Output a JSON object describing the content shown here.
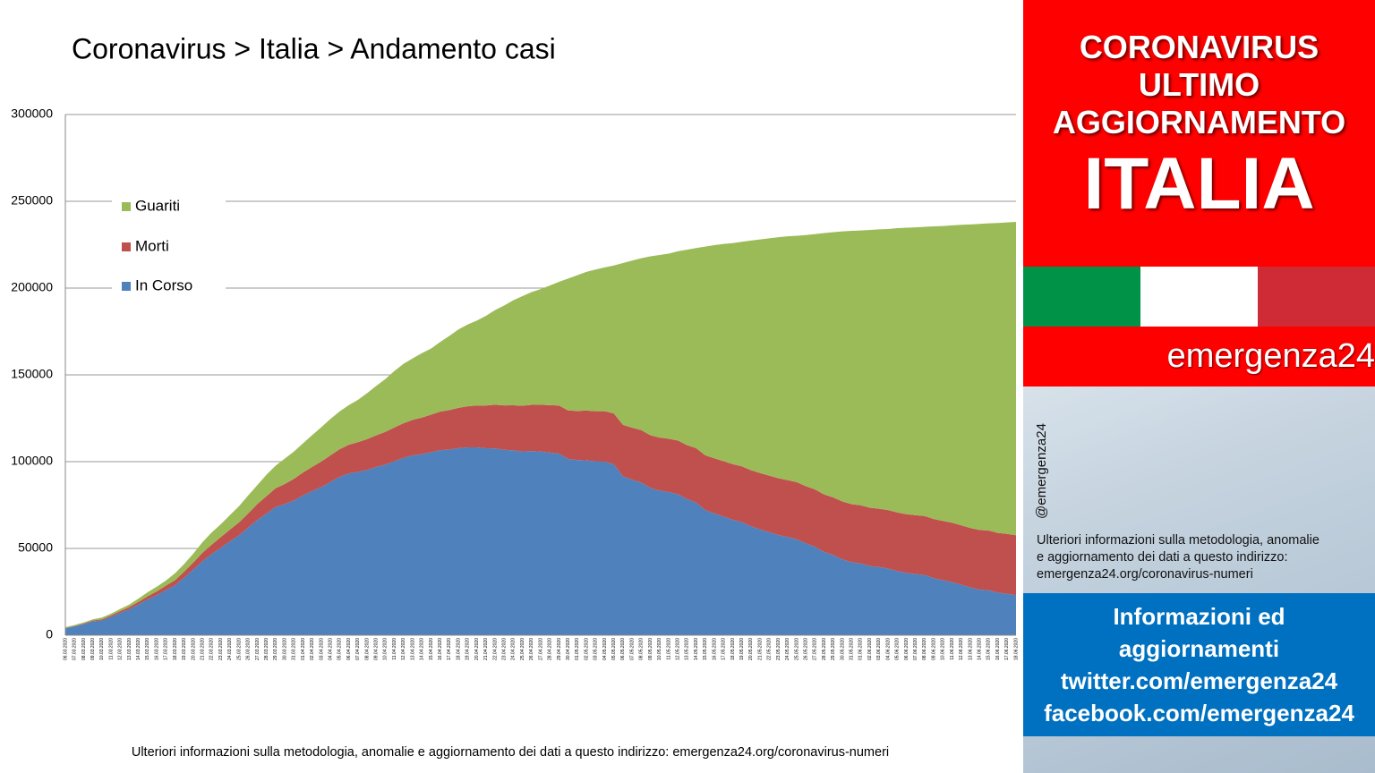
{
  "chart_data": {
    "type": "area",
    "stacked": true,
    "title": "Coronavirus > Italia > Andamento casi",
    "note": "Ulteriori informazioni sulla metodologia, anomalie e aggiornamento dei dati a questo indirizzo: emergenza24.org/coronavirus-numeri",
    "ylim": [
      0,
      300000
    ],
    "yticks": [
      0,
      50000,
      100000,
      150000,
      200000,
      250000,
      300000
    ],
    "grid": true,
    "legend": "upper left",
    "categories": [
      "06.03.2020",
      "07.03.2020",
      "08.03.2020",
      "09.03.2020",
      "10.03.2020",
      "11.03.2020",
      "12.03.2020",
      "13.03.2020",
      "14.03.2020",
      "15.03.2020",
      "16.03.2020",
      "17.03.2020",
      "18.03.2020",
      "19.03.2020",
      "20.03.2020",
      "21.03.2020",
      "22.03.2020",
      "23.03.2020",
      "24.03.2020",
      "25.03.2020",
      "26.03.2020",
      "27.03.2020",
      "28.03.2020",
      "29.03.2020",
      "30.03.2020",
      "31.03.2020",
      "01.04.2020",
      "02.04.2020",
      "03.04.2020",
      "04.04.2020",
      "05.04.2020",
      "06.04.2020",
      "07.04.2020",
      "08.04.2020",
      "09.04.2020",
      "10.04.2020",
      "11.04.2020",
      "12.04.2020",
      "13.04.2020",
      "14.04.2020",
      "15.04.2020",
      "16.04.2020",
      "17.04.2020",
      "18.04.2020",
      "19.04.2020",
      "20.04.2020",
      "21.04.2020",
      "22.04.2020",
      "23.04.2020",
      "24.04.2020",
      "25.04.2020",
      "26.04.2020",
      "27.04.2020",
      "28.04.2020",
      "29.04.2020",
      "30.04.2020",
      "01.05.2020",
      "02.05.2020",
      "03.05.2020",
      "04.05.2020",
      "05.05.2020",
      "06.05.2020",
      "07.05.2020",
      "08.05.2020",
      "09.05.2020",
      "10.05.2020",
      "11.05.2020",
      "12.05.2020",
      "13.05.2020",
      "14.05.2020",
      "15.05.2020",
      "16.05.2020",
      "17.05.2020",
      "18.05.2020",
      "19.05.2020",
      "20.05.2020",
      "21.05.2020",
      "22.05.2020",
      "23.05.2020",
      "24.05.2020",
      "25.05.2020",
      "26.05.2020",
      "27.05.2020",
      "28.05.2020",
      "29.05.2020",
      "30.05.2020",
      "31.05.2020",
      "01.06.2020",
      "02.06.2020",
      "03.06.2020",
      "04.06.2020",
      "05.06.2020",
      "06.06.2020",
      "07.06.2020",
      "08.06.2020",
      "09.06.2020",
      "10.06.2020",
      "11.06.2020",
      "12.06.2020",
      "13.06.2020",
      "14.06.2020",
      "15.06.2020",
      "16.06.2020",
      "17.06.2020",
      "18.06.2020"
    ],
    "series": [
      {
        "name": "In Corso",
        "color": "#4f81bd",
        "values": [
          3916,
          5061,
          6387,
          7985,
          8514,
          10590,
          12839,
          14955,
          17750,
          20603,
          23073,
          26062,
          28710,
          33190,
          37860,
          42681,
          46638,
          50418,
          54030,
          57521,
          62013,
          66414,
          70065,
          73880,
          75528,
          77635,
          80572,
          83049,
          85388,
          88274,
          91246,
          93187,
          94067,
          95262,
          96877,
          98273,
          100269,
          102253,
          103616,
          104291,
          105418,
          106607,
          106962,
          107771,
          108257,
          108237,
          107709,
          107699,
          106848,
          106527,
          105847,
          106103,
          105813,
          105205,
          104657,
          101551,
          100943,
          100704,
          100179,
          99980,
          98467,
          91528,
          89624,
          87961,
          84842,
          83324,
          82488,
          81266,
          78457,
          76440,
          72070,
          70187,
          68351,
          66553,
          65129,
          62752,
          60960,
          59322,
          57752,
          56594,
          55300,
          52942,
          50966,
          47986,
          46175,
          43691,
          42075,
          41367,
          39893,
          39297,
          38429,
          36976,
          35877,
          35262,
          34730,
          32872,
          31710,
          30637,
          29129,
          27485,
          26274,
          25909,
          24569,
          23925,
          23101
        ]
      },
      {
        "name": "Morti",
        "color": "#c0504d",
        "values": [
          197,
          233,
          366,
          463,
          631,
          827,
          1016,
          1266,
          1441,
          1809,
          2158,
          2503,
          2978,
          3405,
          4032,
          4825,
          5476,
          6077,
          6820,
          7503,
          8165,
          9134,
          10023,
          10779,
          11591,
          12428,
          13155,
          13915,
          14681,
          15362,
          15887,
          16523,
          17127,
          17669,
          18279,
          18849,
          19468,
          19899,
          20465,
          21067,
          21645,
          22170,
          22745,
          23227,
          23660,
          24114,
          24648,
          25085,
          25549,
          25969,
          26384,
          26644,
          26977,
          27359,
          27682,
          27967,
          28236,
          28710,
          28884,
          29079,
          29315,
          29684,
          29958,
          30201,
          30395,
          30560,
          30739,
          30911,
          31106,
          31368,
          31610,
          31763,
          31908,
          32007,
          32169,
          32330,
          32486,
          32616,
          32735,
          32785,
          32877,
          32955,
          33072,
          33142,
          33229,
          33340,
          33415,
          33475,
          33530,
          33601,
          33689,
          33774,
          33846,
          33899,
          33964,
          34043,
          34114,
          34167,
          34223,
          34301,
          34345,
          34371,
          34405,
          34448,
          34514
        ]
      },
      {
        "name": "Guariti",
        "color": "#9bbb59",
        "values": [
          523,
          589,
          622,
          724,
          1004,
          1045,
          1258,
          1439,
          1966,
          2335,
          2749,
          2941,
          4025,
          4440,
          5129,
          6072,
          7024,
          7432,
          8326,
          9362,
          10361,
          10950,
          12384,
          13030,
          14620,
          15729,
          16847,
          18278,
          19758,
          20996,
          21815,
          22837,
          24392,
          26491,
          28470,
          30455,
          32534,
          34211,
          35435,
          37130,
          38092,
          40164,
          42727,
          45154,
          47055,
          48877,
          51600,
          54543,
          57576,
          60498,
          63120,
          64928,
          66624,
          68941,
          71252,
          75945,
          78249,
          79914,
          81654,
          82879,
          85231,
          93245,
          96276,
          99023,
          103031,
          105186,
          106587,
          109039,
          112541,
          115288,
          120205,
          122810,
          125176,
          127326,
          129401,
          132282,
          134560,
          136720,
          138840,
          140479,
          141981,
          144658,
          147101,
          150604,
          152844,
          155633,
          157507,
          158355,
          160092,
          160938,
          161895,
          163781,
          165078,
          165837,
          166584,
          168646,
          169939,
          171338,
          173085,
          174865,
          176370,
          177010,
          178526,
          179455,
          180544
        ]
      }
    ]
  },
  "sidebar": {
    "header": [
      "CORONAVIRUS",
      "ULTIMO",
      "AGGIORNAMENTO"
    ],
    "country": "ITALIA",
    "brand": "emergenza24",
    "handle": "@emergenza24",
    "info": [
      "Ulteriori informazioni sulla metodologia, anomalie",
      "e aggiornamento dei dati a questo indirizzo:",
      "emergenza24.org/coronavirus-numeri"
    ],
    "links": [
      "Informazioni ed",
      "aggiornamenti",
      "twitter.com/emergenza24",
      "facebook.com/emergenza24"
    ]
  }
}
